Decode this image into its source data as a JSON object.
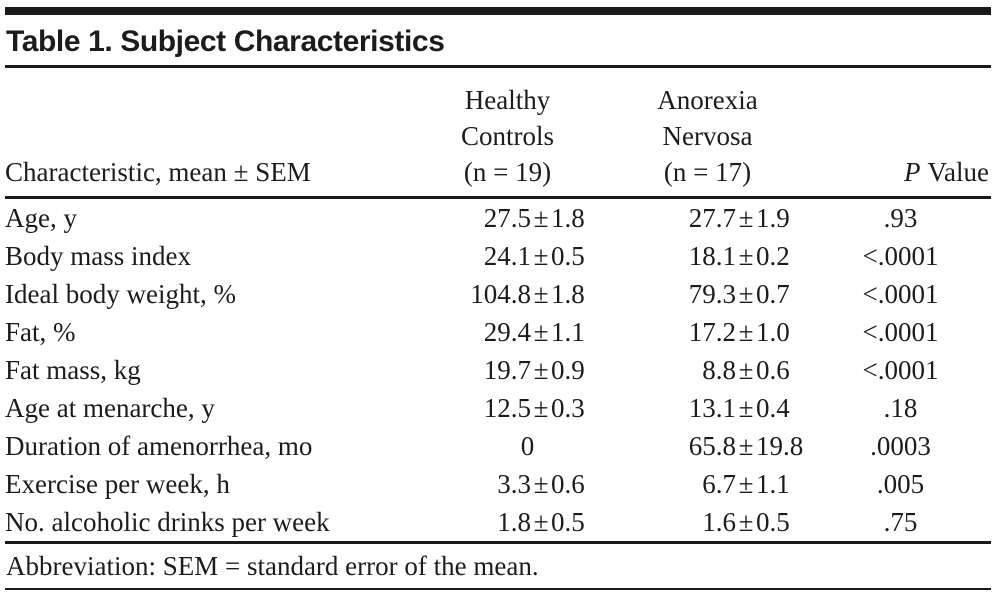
{
  "title": "Table 1. Subject Characteristics",
  "table": {
    "col1_header": "Characteristic, mean ± SEM",
    "col2_header_lines": [
      "Healthy",
      "Controls",
      "(n = 19)"
    ],
    "col3_header_lines": [
      "Anorexia",
      "Nervosa",
      "(n = 17)"
    ],
    "p_header": {
      "italic": "P",
      "rest": "Value"
    },
    "rows": [
      {
        "label": "Age, y",
        "healthy_controls": "27.5 ± 1.8",
        "anorexia_nervosa": "27.7 ± 1.9",
        "p_value": ".93"
      },
      {
        "label": "Body mass index",
        "healthy_controls": "24.1 ± 0.5",
        "anorexia_nervosa": "18.1 ± 0.2",
        "p_value": "<.0001"
      },
      {
        "label": "Ideal body weight, %",
        "healthy_controls": "104.8 ± 1.8",
        "anorexia_nervosa": "79.3 ± 0.7",
        "p_value": "<.0001"
      },
      {
        "label": "Fat, %",
        "healthy_controls": "29.4 ± 1.1",
        "anorexia_nervosa": "17.2 ± 1.0",
        "p_value": "<.0001"
      },
      {
        "label": "Fat mass, kg",
        "healthy_controls": "19.7 ± 0.9",
        "anorexia_nervosa": "8.8 ± 0.6",
        "p_value": "<.0001"
      },
      {
        "label": "Age at menarche, y",
        "healthy_controls": "12.5 ± 0.3",
        "anorexia_nervosa": "13.1 ± 0.4",
        "p_value": ".18"
      },
      {
        "label": "Duration of amenorrhea, mo",
        "healthy_controls": "0",
        "anorexia_nervosa": "65.8 ± 19.8",
        "p_value": ".0003"
      },
      {
        "label": "Exercise per week, h",
        "healthy_controls": "3.3 ± 0.6",
        "anorexia_nervosa": "6.7 ± 1.1",
        "p_value": ".005"
      },
      {
        "label": "No. alcoholic drinks per week",
        "healthy_controls": "1.8 ± 0.5",
        "anorexia_nervosa": "1.6 ± 0.5",
        "p_value": ".75"
      }
    ],
    "footnote": "Abbreviation: SEM = standard error of the mean."
  },
  "colors": {
    "text": "#1c1c1c",
    "rule": "#1a1a1a",
    "background": "#ffffff"
  }
}
